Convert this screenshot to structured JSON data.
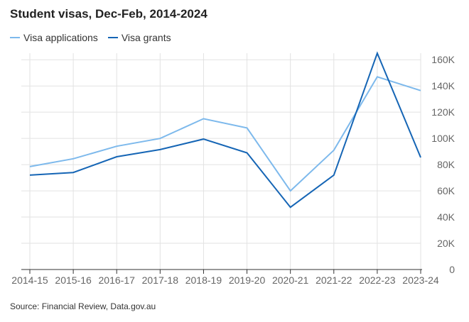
{
  "title": "Student visas, Dec-Feb, 2014-2024",
  "source": "Source: Financial Review, Data.gov.au",
  "colors": {
    "applications": "#7db9ec",
    "grants": "#1565b5",
    "grid": "#e2e2e2",
    "axis": "#333333"
  },
  "chart_data": {
    "type": "line",
    "title": "Student visas, Dec-Feb, 2014-2024",
    "xlabel": "",
    "ylabel": "",
    "categories": [
      "2014-15",
      "2015-16",
      "2016-17",
      "2017-18",
      "2018-19",
      "2019-20",
      "2020-21",
      "2021-22",
      "2022-23",
      "2023-24"
    ],
    "ylim": [
      0,
      165000
    ],
    "yticks": [
      0,
      20000,
      40000,
      60000,
      80000,
      100000,
      120000,
      140000,
      160000
    ],
    "ytick_labels": [
      "0",
      "20K",
      "40K",
      "60K",
      "80K",
      "100K",
      "120K",
      "140K",
      "160K"
    ],
    "grid": true,
    "legend_position": "top-left",
    "series": [
      {
        "name": "Visa applications",
        "color": "#7db9ec",
        "values": [
          78500,
          84500,
          94000,
          100000,
          115000,
          108000,
          60000,
          91000,
          147000,
          136500
        ]
      },
      {
        "name": "Visa grants",
        "color": "#1565b5",
        "values": [
          72000,
          74000,
          86000,
          91500,
          99500,
          89000,
          47500,
          72000,
          165000,
          85500
        ]
      }
    ]
  }
}
